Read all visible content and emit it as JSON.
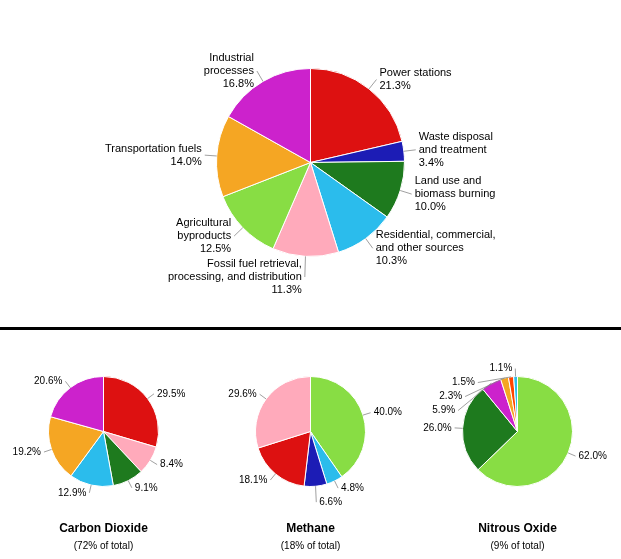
{
  "chart_data": [
    {
      "type": "pie",
      "categories": [
        "Power stations\n21.3%",
        "Waste disposal\nand treatment\n3.4%",
        "Land use and\nbiomass burning\n10.0%",
        "Residential, commercial,\nand other sources\n10.3%",
        "Fossil fuel retrieval,\nprocessing, and distribution\n11.3%",
        "Agricultural\nbyproducts\n12.5%",
        "Transportation fuels\n14.0%",
        "Industrial\nprocesses\n16.8%"
      ],
      "values": [
        21.3,
        3.4,
        10.0,
        10.3,
        11.3,
        12.5,
        14.0,
        16.8
      ],
      "colors": [
        "#dd1111",
        "#1c1cb5",
        "#1e7a1e",
        "#2bbcec",
        "#ffaabb",
        "#88dd44",
        "#f5a623",
        "#cc22cc"
      ]
    },
    {
      "type": "pie",
      "title": "Carbon Dioxide",
      "subtitle": "(72% of total)",
      "values": [
        29.5,
        8.4,
        9.1,
        12.9,
        19.2,
        20.6
      ],
      "value_labels": [
        "29.5%",
        "8.4%",
        "9.1%",
        "12.9%",
        "19.2%",
        "20.6%"
      ],
      "colors": [
        "#dd1111",
        "#ffaabb",
        "#1e7a1e",
        "#2bbcec",
        "#f5a623",
        "#cc22cc"
      ],
      "data_labels": true
    },
    {
      "type": "pie",
      "title": "Methane",
      "subtitle": "(18% of total)",
      "values": [
        40.0,
        4.8,
        6.6,
        18.1,
        29.6
      ],
      "value_labels": [
        "40.0%",
        "4.8%",
        "6.6%",
        "18.1%",
        "29.6%"
      ],
      "colors": [
        "#88dd44",
        "#2bbcec",
        "#1c1cb5",
        "#dd1111",
        "#ffaabb"
      ],
      "data_labels": true
    },
    {
      "type": "pie",
      "title": "Nitrous Oxide",
      "subtitle": "(9% of total)",
      "values": [
        62.0,
        26.0,
        5.9,
        2.3,
        1.5,
        1.1
      ],
      "value_labels": [
        "62.0%",
        "26.0%",
        "5.9%",
        "2.3%",
        "1.5%",
        "1.1%"
      ],
      "colors": [
        "#88dd44",
        "#1e7a1e",
        "#cc22cc",
        "#f5a623",
        "#ff4400",
        "#2bbcec"
      ],
      "data_labels": true
    }
  ]
}
